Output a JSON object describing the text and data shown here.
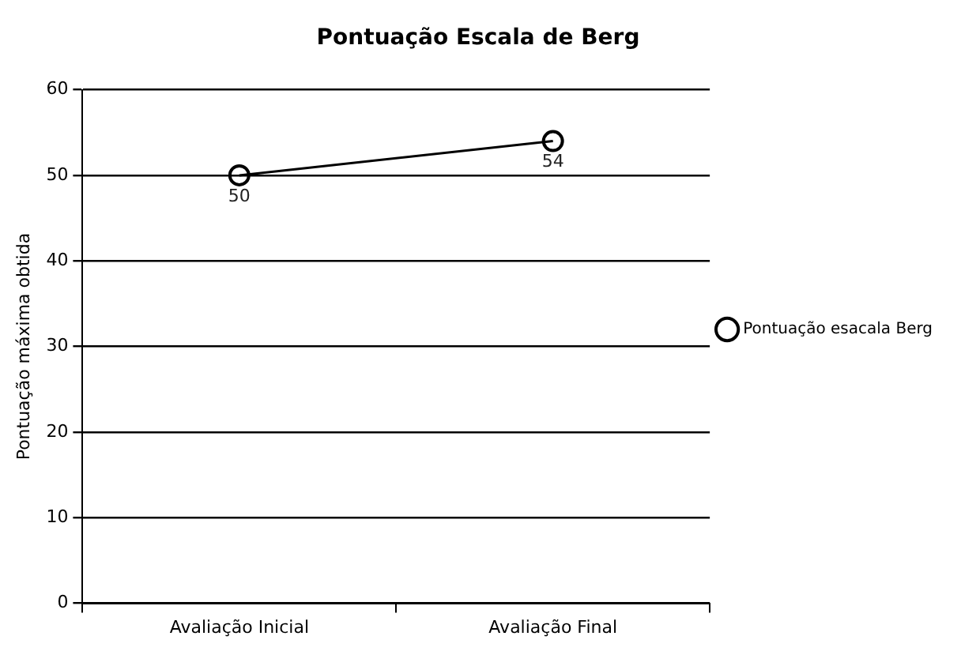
{
  "chart_data": {
    "type": "line",
    "title": "Pontuação Escala de Berg",
    "ylabel": "Pontuação máxima obtida",
    "categories": [
      "Avaliação Inicial",
      "Avaliação Final"
    ],
    "series": [
      {
        "name": "Pontuação esacala Berg",
        "color": "#000000",
        "values": [
          50,
          54
        ]
      }
    ],
    "ylim": [
      0,
      60
    ],
    "yticks": [
      0,
      10,
      20,
      30,
      40,
      50,
      60
    ],
    "grid": "y",
    "legend": "right",
    "marker": "circle",
    "line_style": "solid",
    "data_labels": true
  }
}
